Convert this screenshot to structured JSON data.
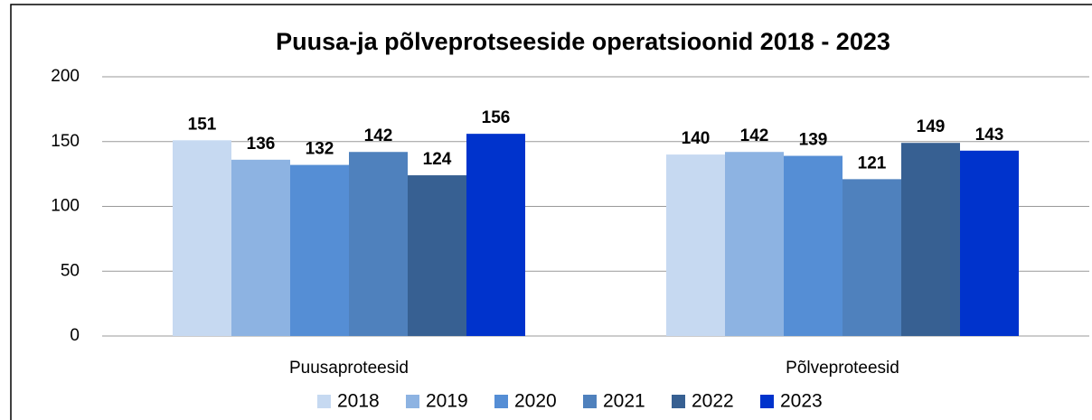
{
  "chart_data": {
    "type": "bar",
    "title": "Puusa-ja põlveprotseeside operatsioonid  2018 - 2023",
    "categories": [
      "Puusaproteesid",
      "Põlveproteesid"
    ],
    "series": [
      {
        "name": "2018",
        "color": "#c6d9f1",
        "values": [
          151,
          140
        ]
      },
      {
        "name": "2019",
        "color": "#8db3e2",
        "values": [
          136,
          142
        ]
      },
      {
        "name": "2020",
        "color": "#558ed5",
        "values": [
          132,
          139
        ]
      },
      {
        "name": "2021",
        "color": "#4f81bd",
        "values": [
          142,
          121
        ]
      },
      {
        "name": "2022",
        "color": "#376092",
        "values": [
          124,
          149
        ]
      },
      {
        "name": "2023",
        "color": "#0033cc",
        "values": [
          156,
          143
        ]
      }
    ],
    "ylim": [
      0,
      200
    ],
    "yticks": [
      0,
      50,
      100,
      150,
      200
    ],
    "grid": true,
    "legend": "bottom"
  }
}
